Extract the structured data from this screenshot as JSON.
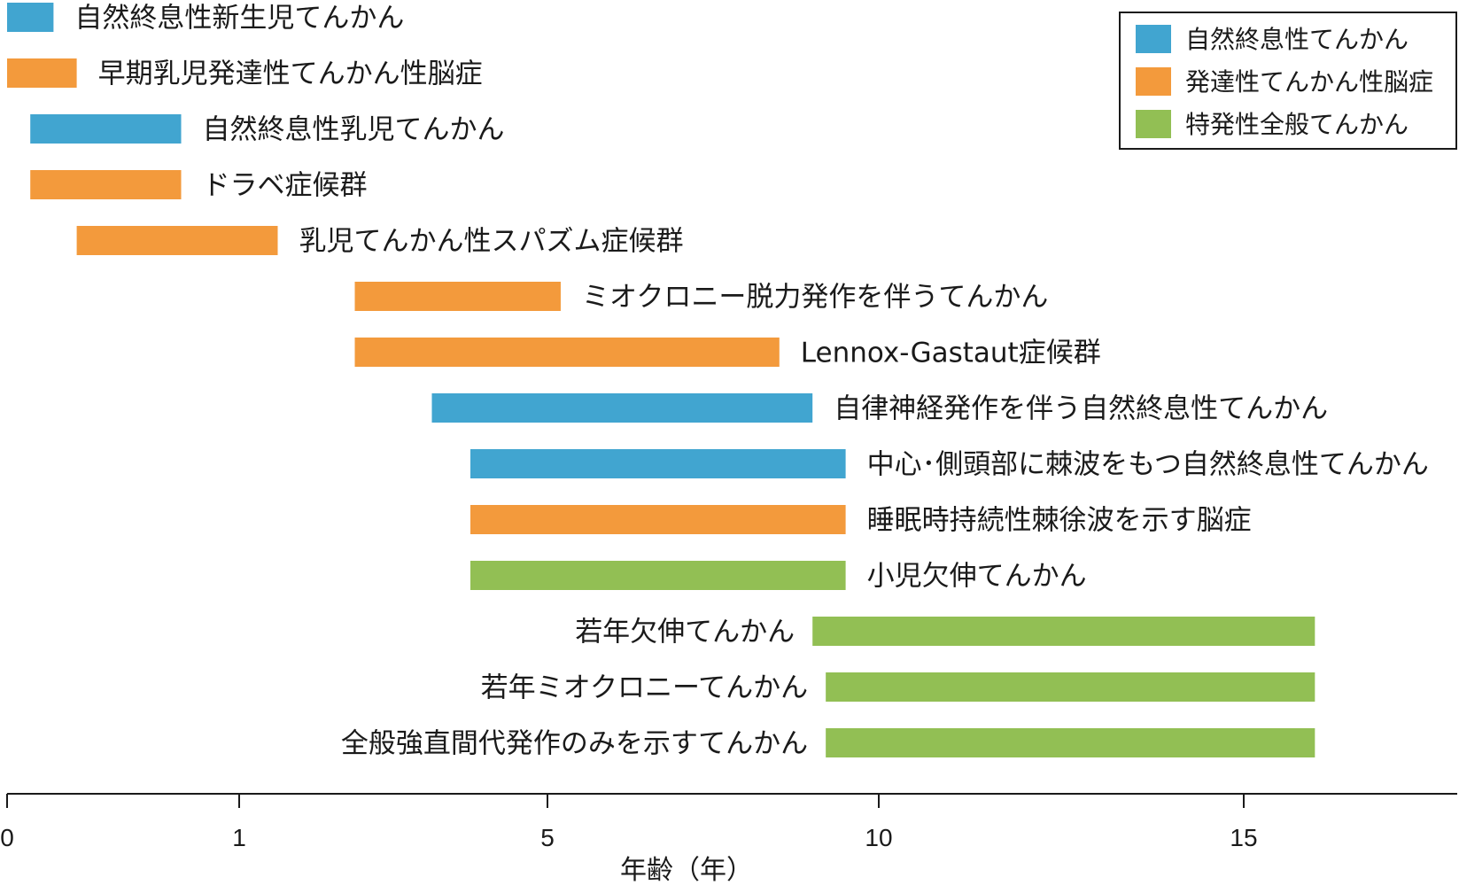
{
  "chart_data": {
    "type": "bar",
    "orientation": "horizontal-range",
    "xlabel": "年齢（年）",
    "x_ticks": [
      "0",
      "1",
      "5",
      "10",
      "15"
    ],
    "colors": {
      "self_limited": "#41a5d0",
      "dee": "#f39a3c",
      "idiopathic": "#92bf54"
    },
    "legend": {
      "placement": "top-right",
      "entries": [
        {
          "category": "self_limited",
          "label": "自然終息性てんかん"
        },
        {
          "category": "dee",
          "label": "発達性てんかん性脳症"
        },
        {
          "category": "idiopathic",
          "label": "特発性全般てんかん"
        }
      ]
    },
    "series": [
      {
        "label": "自然終息性新生児てんかん",
        "category": "self_limited",
        "start": 0,
        "end": 0.2,
        "label_side": "right"
      },
      {
        "label": "早期乳児発達性てんかん性脳症",
        "category": "dee",
        "start": 0,
        "end": 0.3,
        "label_side": "right"
      },
      {
        "label": "自然終息性乳児てんかん",
        "category": "self_limited",
        "start": 0.1,
        "end": 0.75,
        "label_side": "right"
      },
      {
        "label": "ドラベ症候群",
        "category": "dee",
        "start": 0.1,
        "end": 0.75,
        "label_side": "right"
      },
      {
        "label": "乳児てんかん性スパズム症候群",
        "category": "dee",
        "start": 0.3,
        "end": 1.5,
        "label_side": "right"
      },
      {
        "label": "ミオクロニー脱力発作を伴うてんかん",
        "category": "dee",
        "start": 2.5,
        "end": 5.2,
        "label_side": "right"
      },
      {
        "label": "Lennox-Gastaut症候群",
        "category": "dee",
        "start": 2.5,
        "end": 8.5,
        "label_side": "right"
      },
      {
        "label": "自律神経発作を伴う自然終息性てんかん",
        "category": "self_limited",
        "start": 3.5,
        "end": 9,
        "label_side": "right"
      },
      {
        "label": "中心･側頭部に棘波をもつ自然終息性てんかん",
        "category": "self_limited",
        "start": 4,
        "end": 9.5,
        "label_side": "right"
      },
      {
        "label": "睡眠時持続性棘徐波を示す脳症",
        "category": "dee",
        "start": 4,
        "end": 9.5,
        "label_side": "right"
      },
      {
        "label": "小児欠伸てんかん",
        "category": "idiopathic",
        "start": 4,
        "end": 9.5,
        "label_side": "right"
      },
      {
        "label": "若年欠伸てんかん",
        "category": "idiopathic",
        "start": 9,
        "end": 16,
        "label_side": "left"
      },
      {
        "label": "若年ミオクロニーてんかん",
        "category": "idiopathic",
        "start": 9.2,
        "end": 16,
        "label_side": "left"
      },
      {
        "label": "全般強直間代発作のみを示すてんかん",
        "category": "idiopathic",
        "start": 9.2,
        "end": 16,
        "label_side": "left"
      }
    ]
  }
}
